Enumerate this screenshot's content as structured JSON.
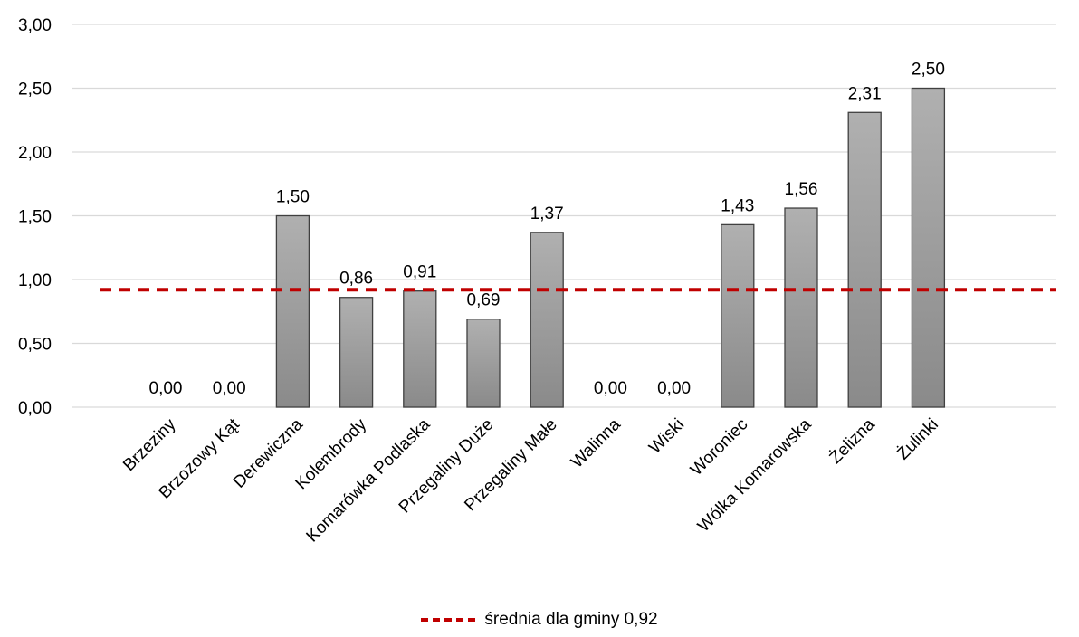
{
  "chart_data": {
    "type": "bar",
    "categories": [
      "Brzeziny",
      "Brzozowy Kąt",
      "Derewiczna",
      "Kolembrody",
      "Komarówka Podlaska",
      "Przegaliny Duże",
      "Przegaliny Małe",
      "Walinna",
      "Wiski",
      "Woroniec",
      "Wólka Komarowska",
      "Żelizna",
      "Żulinki"
    ],
    "values": [
      0.0,
      0.0,
      1.5,
      0.86,
      0.91,
      0.69,
      1.37,
      0.0,
      0.0,
      1.43,
      1.56,
      2.31,
      2.5
    ],
    "value_labels": [
      "0,00",
      "0,00",
      "1,50",
      "0,86",
      "0,91",
      "0,69",
      "1,37",
      "0,00",
      "0,00",
      "1,43",
      "1,56",
      "2,31",
      "2,50"
    ],
    "yticks": [
      0,
      0.5,
      1,
      1.5,
      2,
      2.5,
      3
    ],
    "ytick_labels": [
      "0,00",
      "0,50",
      "1,00",
      "1,50",
      "2,00",
      "2,50",
      "3,00"
    ],
    "ylim": [
      0,
      3
    ],
    "reference_line": {
      "name": "średnia dla gminy 0,92",
      "value": 0.92,
      "color": "#c00000"
    },
    "legend_position": "bottom-center",
    "grid": true,
    "bar_color_top": "#b0b0b0",
    "bar_color_bottom": "#8a8a8a"
  }
}
